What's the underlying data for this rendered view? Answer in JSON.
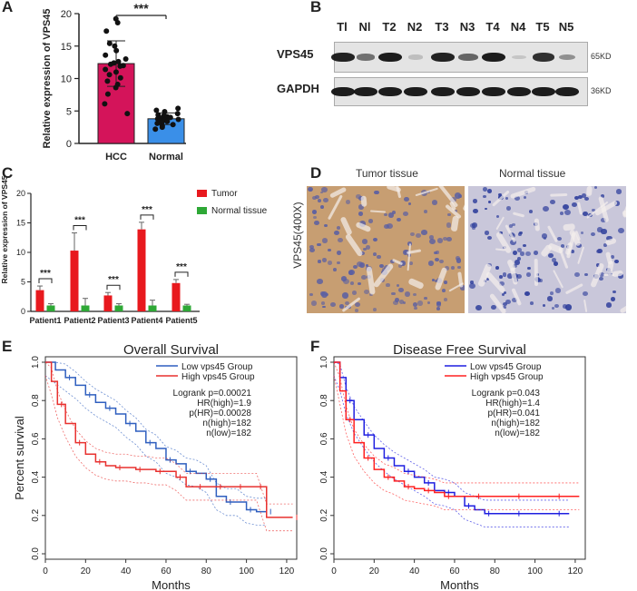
{
  "panels": {
    "A": "A",
    "B": "B",
    "C": "C",
    "D": "D",
    "E": "E",
    "F": "F"
  },
  "colors": {
    "hcc": "#d4145a",
    "normal": "#3a8fe8",
    "tumor_bar": "#e8191e",
    "normal_bar": "#2ea836",
    "low_line": "#2f5fbf",
    "high_line": "#e8312f",
    "low_line_f": "#1f1fe0",
    "high_line_f": "#ff2020",
    "stain_tumor": "#c79e72",
    "stain_normal": "#c9c7da"
  },
  "panel_a": {
    "chart_data": {
      "type": "bar",
      "categories": [
        "HCC",
        "Normal"
      ],
      "values": [
        12.3,
        3.8
      ],
      "errors": [
        3.5,
        0.9
      ],
      "ylabel": "Relative expression of VPS45",
      "ylim": [
        0,
        20
      ],
      "yticks": [
        "0",
        "5",
        "10",
        "15",
        "20"
      ],
      "significance": "***",
      "points_hcc": [
        19.2,
        18.6,
        17.3,
        15.4,
        15.0,
        14.3,
        13.6,
        13.0,
        12.6,
        12.4,
        12.2,
        12.0,
        11.9,
        11.4,
        11.0,
        10.6,
        10.1,
        9.6,
        9.1,
        8.6,
        7.6,
        6.1,
        4.6
      ],
      "points_normal": [
        5.4,
        5.1,
        4.9,
        4.6,
        4.4,
        4.3,
        4.1,
        4.0,
        3.9,
        3.8,
        3.7,
        3.6,
        3.5,
        3.4,
        3.2,
        3.1,
        2.9,
        2.7,
        2.5,
        2.2
      ]
    }
  },
  "panel_b": {
    "lanes": [
      "Tl",
      "Nl",
      "T2",
      "N2",
      "T3",
      "N3",
      "T4",
      "N4",
      "T5",
      "N5"
    ],
    "rows": [
      {
        "name": "VPS45",
        "kd": "65KD",
        "intensity": [
          0.92,
          0.55,
          0.95,
          0.18,
          0.92,
          0.6,
          0.95,
          0.12,
          0.85,
          0.4
        ]
      },
      {
        "name": "GAPDH",
        "kd": "36KD",
        "intensity": [
          0.95,
          0.95,
          0.95,
          0.95,
          0.95,
          0.95,
          0.95,
          0.95,
          0.95,
          0.95
        ]
      }
    ]
  },
  "panel_c": {
    "chart_data": {
      "type": "bar",
      "categories": [
        "Patient1",
        "Patient2",
        "Patient3",
        "Patient4",
        "Patient5"
      ],
      "series": [
        {
          "name": "Tumor",
          "values": [
            3.6,
            10.3,
            2.7,
            13.9,
            4.8
          ],
          "errors": [
            0.7,
            3.0,
            0.5,
            1.2,
            0.6
          ]
        },
        {
          "name": "Normal tissue",
          "values": [
            1.0,
            1.0,
            1.0,
            1.0,
            1.0
          ],
          "errors": [
            0.3,
            1.2,
            0.3,
            0.9,
            0.2
          ]
        }
      ],
      "ylabel": "Relative expression of VPS45",
      "ylim": [
        0,
        20
      ],
      "yticks": [
        "0",
        "5",
        "10",
        "15",
        "20"
      ],
      "significance": [
        "***",
        "***",
        "***",
        "***",
        "***"
      ]
    }
  },
  "panel_d": {
    "tumor_title": "Tumor tissue",
    "normal_title": "Normal tissue",
    "ylabel": "VPS45(400X)"
  },
  "panel_e": {
    "chart_data": {
      "type": "line",
      "title": "Overall Survival",
      "xlabel": "Months",
      "ylabel": "Percent survival",
      "xlim": [
        0,
        125
      ],
      "ylim": [
        0,
        1.0
      ],
      "xticks": [
        "0",
        "20",
        "40",
        "60",
        "80",
        "100",
        "120"
      ],
      "yticks": [
        "0.0",
        "0.2",
        "0.4",
        "0.6",
        "0.8",
        "1.0"
      ],
      "legend": [
        "Low vps45 Group",
        "High vps45 Group"
      ],
      "stats": [
        "Logrank p=0.00021",
        "HR(high)=1.9",
        "p(HR)=0.00028",
        "n(high)=182",
        "n(low)=182"
      ],
      "series": [
        {
          "name": "Low vps45 Group",
          "x": [
            0,
            5,
            10,
            15,
            20,
            25,
            30,
            35,
            40,
            45,
            50,
            55,
            60,
            65,
            70,
            75,
            80,
            85,
            90,
            95,
            100,
            105,
            110
          ],
          "y": [
            1.0,
            0.96,
            0.92,
            0.88,
            0.83,
            0.79,
            0.76,
            0.73,
            0.68,
            0.64,
            0.58,
            0.55,
            0.49,
            0.47,
            0.43,
            0.42,
            0.39,
            0.3,
            0.27,
            0.27,
            0.23,
            0.22,
            0.22
          ]
        },
        {
          "name": "High vps45 Group",
          "x": [
            0,
            3,
            6,
            10,
            15,
            20,
            25,
            30,
            35,
            40,
            45,
            50,
            55,
            60,
            65,
            70,
            75,
            80,
            85,
            90,
            95,
            100,
            105,
            110,
            123
          ],
          "y": [
            1.0,
            0.9,
            0.78,
            0.68,
            0.58,
            0.52,
            0.48,
            0.46,
            0.45,
            0.45,
            0.44,
            0.44,
            0.43,
            0.43,
            0.4,
            0.35,
            0.35,
            0.35,
            0.35,
            0.35,
            0.35,
            0.35,
            0.35,
            0.19,
            0.19
          ]
        }
      ]
    }
  },
  "panel_f": {
    "chart_data": {
      "type": "line",
      "title": "Disease Free Survival",
      "xlabel": "Months",
      "ylabel": "Percent survival",
      "xlim": [
        0,
        125
      ],
      "ylim": [
        0,
        1.0
      ],
      "xticks": [
        "0",
        "20",
        "40",
        "60",
        "80",
        "100",
        "120"
      ],
      "yticks": [
        "0.0",
        "0.2",
        "0.4",
        "0.6",
        "0.8",
        "1.0"
      ],
      "legend": [
        "Low vps45 Group",
        "High vps45 Group"
      ],
      "stats": [
        "Logrank p=0.043",
        "HR(high)=1.4",
        "p(HR)=0.041",
        "n(high)=182",
        "n(low)=182"
      ],
      "series": [
        {
          "name": "Low vps45 Group",
          "x": [
            0,
            3,
            6,
            10,
            15,
            20,
            25,
            30,
            35,
            40,
            45,
            50,
            55,
            60,
            65,
            70,
            75,
            80,
            90,
            100,
            110,
            117
          ],
          "y": [
            1.0,
            0.92,
            0.8,
            0.7,
            0.62,
            0.55,
            0.5,
            0.46,
            0.43,
            0.4,
            0.37,
            0.33,
            0.32,
            0.3,
            0.25,
            0.23,
            0.21,
            0.21,
            0.21,
            0.21,
            0.21,
            0.21
          ]
        },
        {
          "name": "High vps45 Group",
          "x": [
            0,
            3,
            6,
            10,
            15,
            20,
            25,
            30,
            35,
            40,
            45,
            50,
            55,
            60,
            70,
            80,
            90,
            100,
            110,
            122
          ],
          "y": [
            1.0,
            0.85,
            0.7,
            0.58,
            0.5,
            0.44,
            0.4,
            0.38,
            0.35,
            0.34,
            0.33,
            0.32,
            0.3,
            0.3,
            0.3,
            0.3,
            0.3,
            0.3,
            0.3,
            0.3
          ]
        }
      ]
    }
  }
}
